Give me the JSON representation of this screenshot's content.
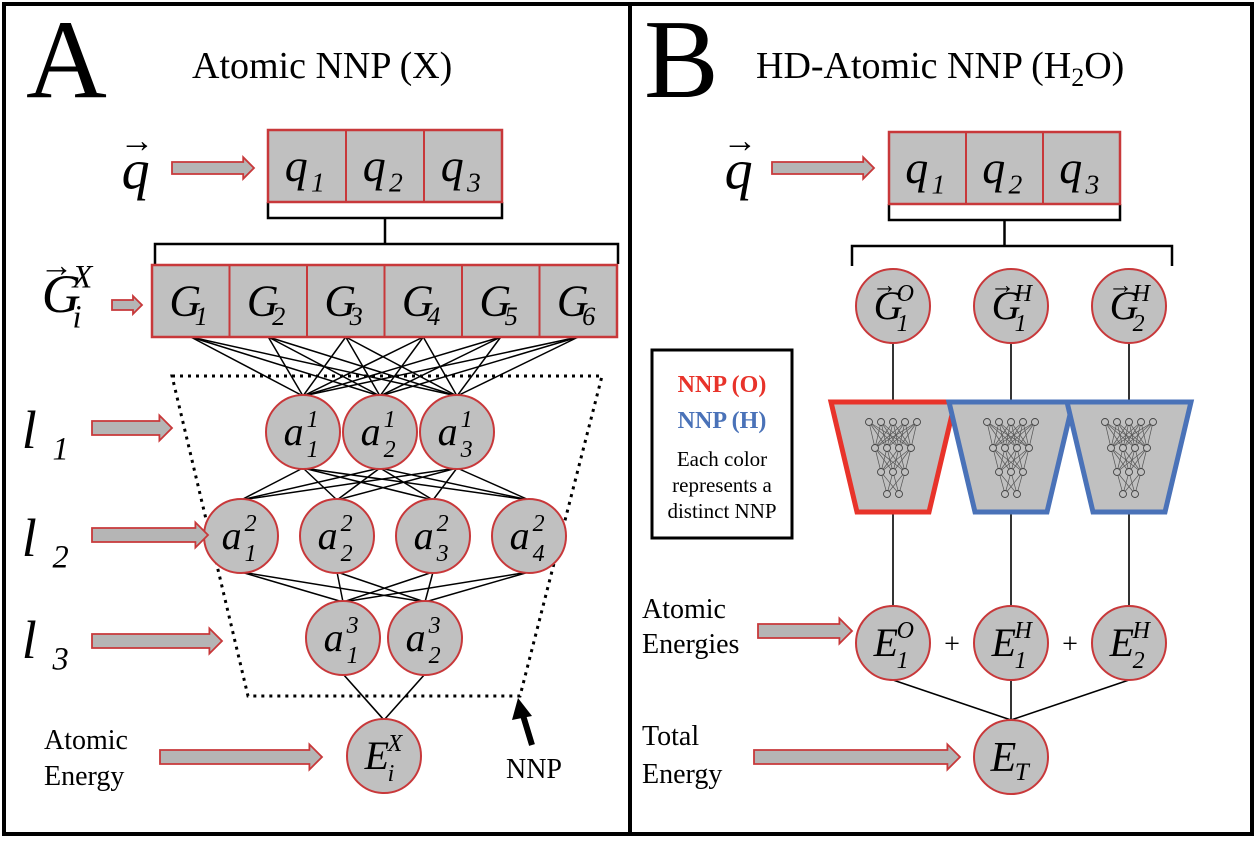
{
  "panel_a": {
    "letter": "A",
    "title": "Atomic NNP (X)",
    "input_label": {
      "base": "q",
      "arrow": "→"
    },
    "q_cells": [
      {
        "base": "q",
        "sub": "1"
      },
      {
        "base": "q",
        "sub": "2"
      },
      {
        "base": "q",
        "sub": "3"
      }
    ],
    "g_label": {
      "base": "G",
      "sub": "i",
      "sup": "X",
      "arrow": "→"
    },
    "g_cells": [
      {
        "base": "G",
        "sub": "1"
      },
      {
        "base": "G",
        "sub": "2"
      },
      {
        "base": "G",
        "sub": "3"
      },
      {
        "base": "G",
        "sub": "4"
      },
      {
        "base": "G",
        "sub": "5"
      },
      {
        "base": "G",
        "sub": "6"
      }
    ],
    "layer_labels": [
      {
        "base": "l",
        "sub": "1"
      },
      {
        "base": "l",
        "sub": "2"
      },
      {
        "base": "l",
        "sub": "3"
      }
    ],
    "layer1_nodes": [
      {
        "base": "a",
        "sup": "1",
        "sub": "1"
      },
      {
        "base": "a",
        "sup": "1",
        "sub": "2"
      },
      {
        "base": "a",
        "sup": "1",
        "sub": "3"
      }
    ],
    "layer2_nodes": [
      {
        "base": "a",
        "sup": "2",
        "sub": "1"
      },
      {
        "base": "a",
        "sup": "2",
        "sub": "2"
      },
      {
        "base": "a",
        "sup": "2",
        "sub": "3"
      },
      {
        "base": "a",
        "sup": "2",
        "sub": "4"
      }
    ],
    "layer3_nodes": [
      {
        "base": "a",
        "sup": "3",
        "sub": "1"
      },
      {
        "base": "a",
        "sup": "3",
        "sub": "2"
      }
    ],
    "output_node": {
      "base": "E",
      "sup": "X",
      "sub": "i"
    },
    "output_label": [
      "Atomic",
      "Energy"
    ],
    "nnp_label": "NNP"
  },
  "panel_b": {
    "letter": "B",
    "title": "HD-Atomic NNP (H",
    "title_sub": "2",
    "title_end": "O)",
    "input_label": {
      "base": "q",
      "arrow": "→"
    },
    "q_cells": [
      {
        "base": "q",
        "sub": "1"
      },
      {
        "base": "q",
        "sub": "2"
      },
      {
        "base": "q",
        "sub": "3"
      }
    ],
    "g_nodes": [
      {
        "base": "G",
        "sup": "O",
        "sub": "1",
        "arrow": "→"
      },
      {
        "base": "G",
        "sup": "H",
        "sub": "1",
        "arrow": "→"
      },
      {
        "base": "G",
        "sup": "H",
        "sub": "2",
        "arrow": "→"
      }
    ],
    "legend": {
      "nnp_o": "NNP (O)",
      "nnp_h": "NNP (H)",
      "note": [
        "Each color",
        "represents a",
        "distinct NNP"
      ]
    },
    "atomic_energies_label": [
      "Atomic",
      "Energies"
    ],
    "energy_nodes": [
      {
        "base": "E",
        "sup": "O",
        "sub": "1"
      },
      {
        "base": "E",
        "sup": "H",
        "sub": "1"
      },
      {
        "base": "E",
        "sup": "H",
        "sub": "2"
      }
    ],
    "plus": "+",
    "total_node": {
      "base": "E",
      "sub": "T"
    },
    "total_label": [
      "Total",
      "Energy"
    ]
  },
  "colors": {
    "cell_fill": "#c0c0c0",
    "cell_border": "#c8383a",
    "nnp_o": "#e8332a",
    "nnp_h": "#4a72b8",
    "arrow_fill": "#b5b5b5",
    "arrow_border": "#c8383a",
    "line": "#000000"
  }
}
